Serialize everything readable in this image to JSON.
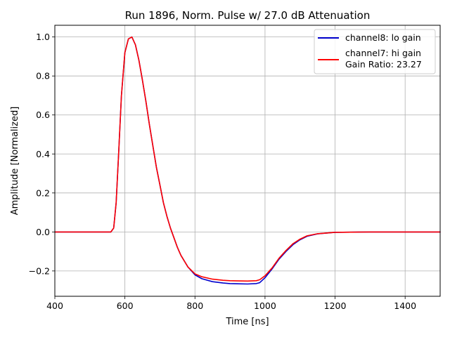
{
  "chart_data": {
    "type": "line",
    "title": "Run 1896, Norm. Pulse w/ 27.0 dB Attenuation",
    "xlabel": "Time [ns]",
    "ylabel": "Amplitude [Normalized]",
    "xlim": [
      400,
      1500
    ],
    "ylim": [
      -0.33,
      1.06
    ],
    "xticks": [
      400,
      600,
      800,
      1000,
      1200,
      1400
    ],
    "xtick_labels": [
      "400",
      "600",
      "800",
      "1000",
      "1200",
      "1400"
    ],
    "yticks": [
      -0.2,
      0.0,
      0.2,
      0.4,
      0.6,
      0.8,
      1.0
    ],
    "ytick_labels": [
      "−0.2",
      "0.0",
      "0.2",
      "0.4",
      "0.6",
      "0.8",
      "1.0"
    ],
    "grid": true,
    "legend_position": "top-right",
    "series": [
      {
        "name": "channel8: lo gain",
        "color": "#0000cc",
        "x": [
          400,
          500,
          560,
          568,
          575,
          582,
          590,
          600,
          610,
          620,
          630,
          640,
          650,
          660,
          670,
          680,
          690,
          700,
          710,
          720,
          730,
          740,
          750,
          760,
          780,
          800,
          820,
          850,
          880,
          900,
          920,
          950,
          975,
          985,
          1000,
          1020,
          1040,
          1060,
          1080,
          1100,
          1120,
          1150,
          1200,
          1300,
          1400,
          1500
        ],
        "values": [
          0.0,
          0.0,
          0.0,
          0.02,
          0.15,
          0.4,
          0.7,
          0.92,
          0.99,
          1.0,
          0.96,
          0.88,
          0.78,
          0.67,
          0.55,
          0.44,
          0.33,
          0.24,
          0.15,
          0.08,
          0.02,
          -0.03,
          -0.08,
          -0.12,
          -0.18,
          -0.22,
          -0.24,
          -0.255,
          -0.262,
          -0.265,
          -0.266,
          -0.267,
          -0.265,
          -0.26,
          -0.235,
          -0.19,
          -0.14,
          -0.1,
          -0.065,
          -0.04,
          -0.022,
          -0.01,
          -0.002,
          0.0,
          0.0,
          0.0
        ]
      },
      {
        "name": "channel7: hi gain",
        "color": "#ff0000",
        "x": [
          400,
          500,
          560,
          568,
          575,
          582,
          590,
          600,
          610,
          620,
          630,
          640,
          650,
          660,
          670,
          680,
          690,
          700,
          710,
          720,
          730,
          740,
          750,
          760,
          780,
          800,
          820,
          850,
          880,
          900,
          920,
          950,
          975,
          985,
          1000,
          1020,
          1040,
          1060,
          1080,
          1100,
          1120,
          1150,
          1200,
          1300,
          1400,
          1500
        ],
        "values": [
          0.0,
          0.0,
          0.0,
          0.02,
          0.15,
          0.4,
          0.7,
          0.92,
          0.99,
          1.0,
          0.96,
          0.88,
          0.78,
          0.67,
          0.55,
          0.44,
          0.33,
          0.24,
          0.15,
          0.08,
          0.02,
          -0.03,
          -0.08,
          -0.12,
          -0.18,
          -0.215,
          -0.23,
          -0.242,
          -0.248,
          -0.25,
          -0.251,
          -0.252,
          -0.25,
          -0.245,
          -0.225,
          -0.185,
          -0.135,
          -0.095,
          -0.06,
          -0.037,
          -0.02,
          -0.009,
          -0.002,
          0.0,
          0.0,
          0.0
        ]
      }
    ],
    "legend_extra_line": "Gain Ratio: 23.27"
  }
}
